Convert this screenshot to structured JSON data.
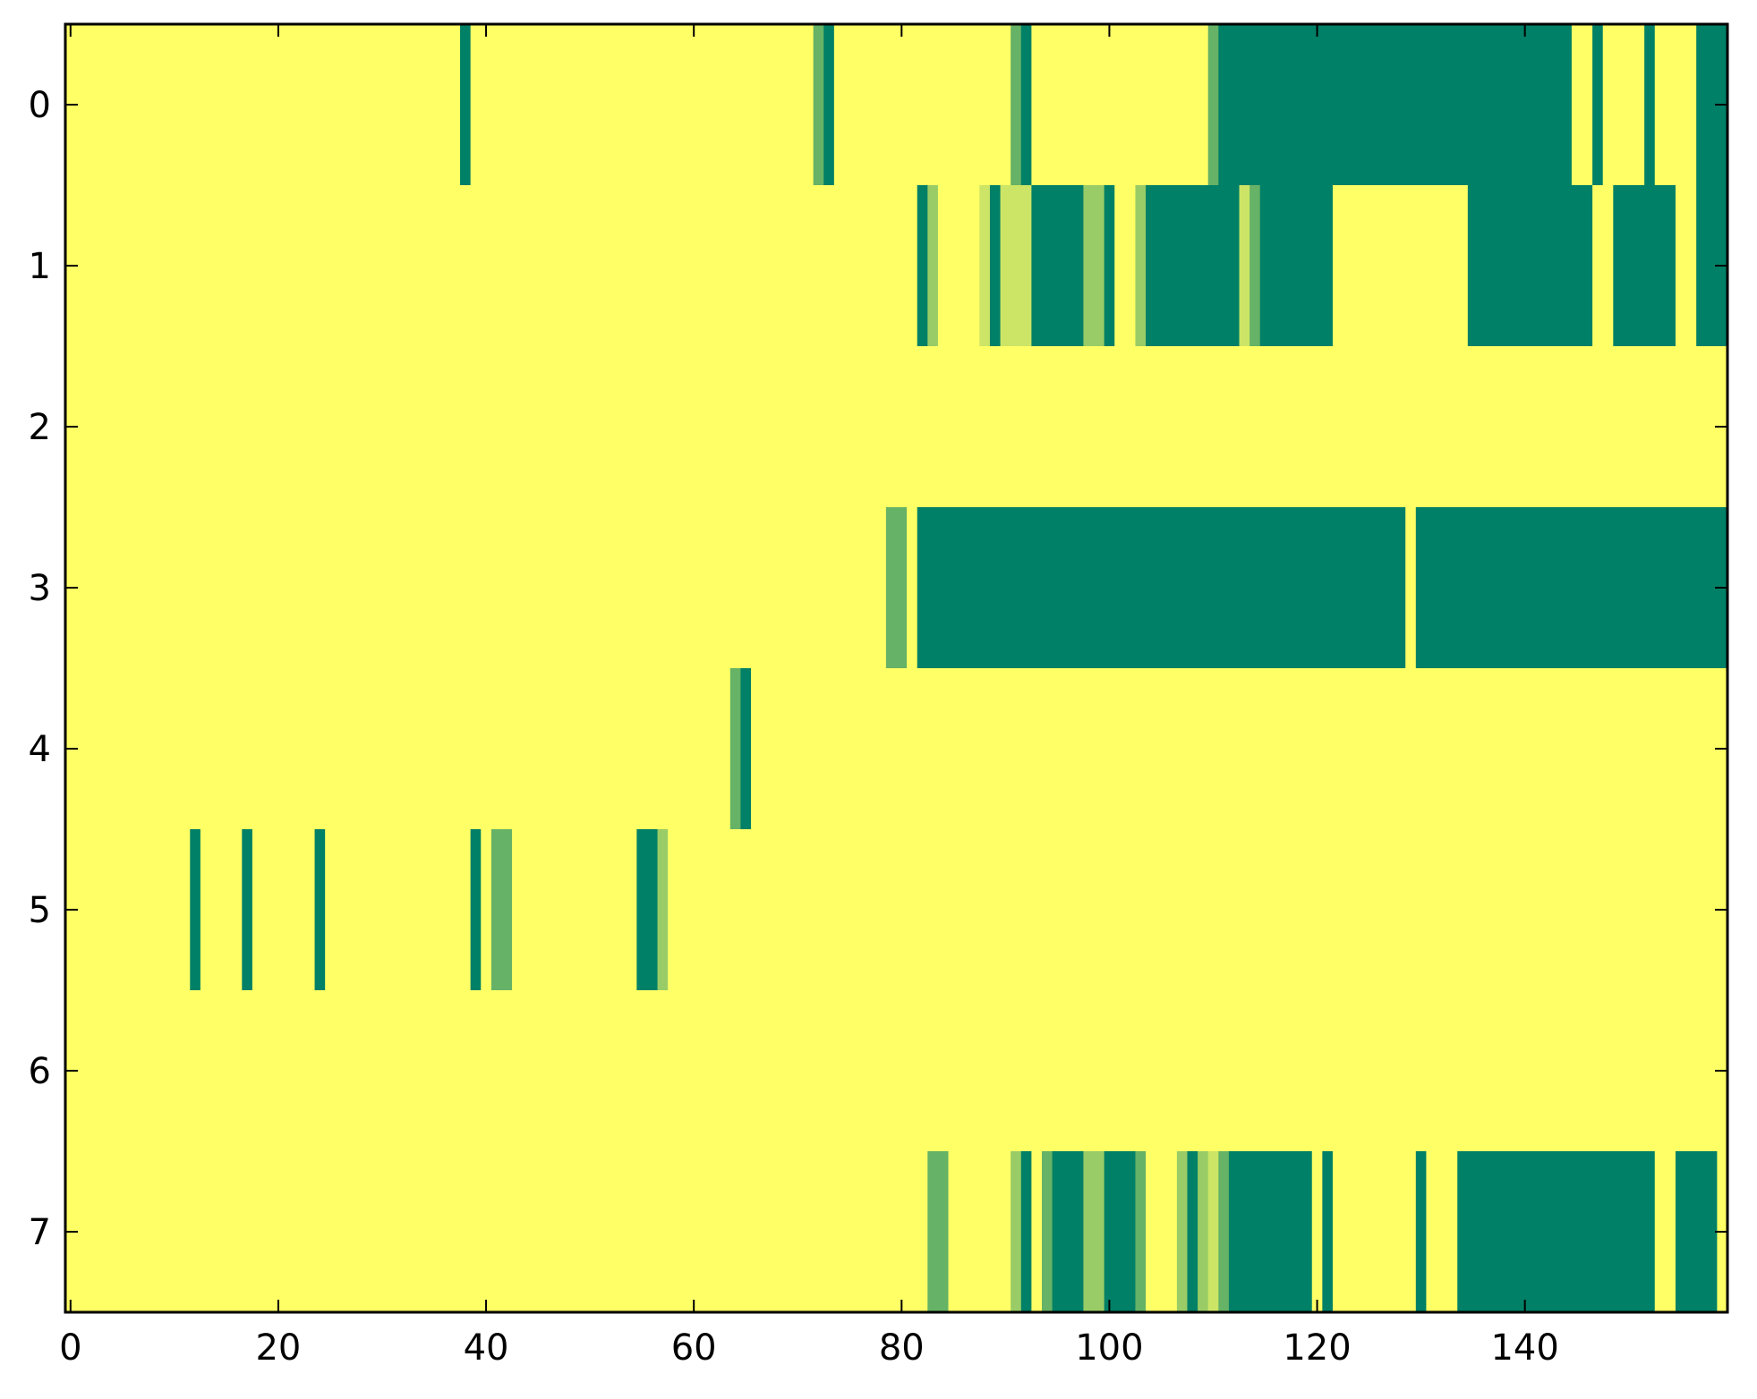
{
  "chart_data": {
    "type": "heatmap",
    "title": "",
    "xlabel": "",
    "ylabel": "",
    "n_columns": 160,
    "n_rows": 8,
    "xlim": [
      -0.5,
      159.5
    ],
    "ylim": [
      7.5,
      -0.5
    ],
    "x_ticks": [
      0,
      20,
      40,
      60,
      80,
      100,
      120,
      140
    ],
    "x_tick_labels": [
      "0",
      "20",
      "40",
      "60",
      "80",
      "100",
      "120",
      "140"
    ],
    "y_ticks": [
      0,
      1,
      2,
      3,
      4,
      5,
      6,
      7
    ],
    "y_tick_labels": [
      "0",
      "1",
      "2",
      "3",
      "4",
      "5",
      "6",
      "7"
    ],
    "grid": false,
    "colorbar": false,
    "colormap": "summer_r",
    "value_range": [
      0,
      1
    ],
    "colors": {
      "value_0": "#ffff66",
      "value_0_2": "#cce566",
      "value_0_4": "#99cc66",
      "value_0_6": "#66b266",
      "value_1": "#008066",
      "axes_frame": "#000000"
    },
    "default_value": 0,
    "note_format": "cells listed as [row, start_col, end_col_inclusive, value]; unlisted cells equal default_value",
    "cells": [
      [
        0,
        38,
        38,
        1
      ],
      [
        0,
        72,
        72,
        0.6
      ],
      [
        0,
        73,
        73,
        1
      ],
      [
        0,
        91,
        91,
        0.6
      ],
      [
        0,
        92,
        92,
        1
      ],
      [
        0,
        110,
        110,
        0.6
      ],
      [
        0,
        111,
        144,
        1
      ],
      [
        0,
        147,
        147,
        1
      ],
      [
        0,
        152,
        152,
        1
      ],
      [
        0,
        157,
        159,
        1
      ],
      [
        1,
        82,
        82,
        1
      ],
      [
        1,
        83,
        83,
        0.4
      ],
      [
        1,
        88,
        88,
        0.2
      ],
      [
        1,
        89,
        89,
        1
      ],
      [
        1,
        90,
        90,
        0.2
      ],
      [
        1,
        91,
        92,
        0.2
      ],
      [
        1,
        93,
        97,
        1
      ],
      [
        1,
        98,
        99,
        0.4
      ],
      [
        1,
        100,
        100,
        1
      ],
      [
        1,
        103,
        103,
        0.4
      ],
      [
        1,
        104,
        112,
        1
      ],
      [
        1,
        113,
        113,
        0.2
      ],
      [
        1,
        114,
        114,
        0.6
      ],
      [
        1,
        115,
        121,
        1
      ],
      [
        1,
        135,
        146,
        1
      ],
      [
        1,
        149,
        154,
        1
      ],
      [
        1,
        157,
        159,
        1
      ],
      [
        3,
        79,
        80,
        0.6
      ],
      [
        3,
        82,
        128,
        1
      ],
      [
        3,
        130,
        159,
        1
      ],
      [
        4,
        64,
        64,
        0.6
      ],
      [
        4,
        65,
        65,
        1
      ],
      [
        5,
        12,
        12,
        1
      ],
      [
        5,
        17,
        17,
        1
      ],
      [
        5,
        24,
        24,
        1
      ],
      [
        5,
        39,
        39,
        1
      ],
      [
        5,
        41,
        42,
        0.6
      ],
      [
        5,
        55,
        56,
        1
      ],
      [
        5,
        57,
        57,
        0.4
      ],
      [
        7,
        83,
        84,
        0.6
      ],
      [
        7,
        91,
        91,
        0.4
      ],
      [
        7,
        92,
        92,
        1
      ],
      [
        7,
        94,
        94,
        0.6
      ],
      [
        7,
        95,
        97,
        1
      ],
      [
        7,
        98,
        99,
        0.4
      ],
      [
        7,
        100,
        102,
        1
      ],
      [
        7,
        103,
        103,
        0.6
      ],
      [
        7,
        107,
        107,
        0.4
      ],
      [
        7,
        108,
        108,
        1
      ],
      [
        7,
        109,
        109,
        0.4
      ],
      [
        7,
        110,
        110,
        0.2
      ],
      [
        7,
        111,
        111,
        0.6
      ],
      [
        7,
        112,
        119,
        1
      ],
      [
        7,
        121,
        121,
        1
      ],
      [
        7,
        130,
        130,
        1
      ],
      [
        7,
        134,
        152,
        1
      ],
      [
        7,
        155,
        158,
        1
      ]
    ]
  }
}
